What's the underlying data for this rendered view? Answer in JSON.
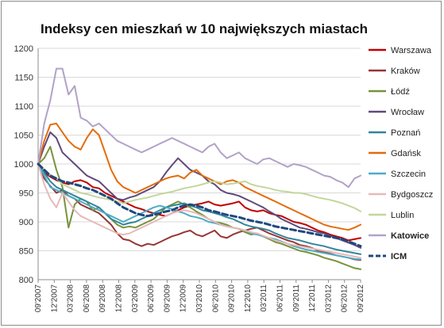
{
  "chart_data": {
    "type": "line",
    "title": "Indeksy cen mieszkań w 10 największych miastach",
    "xlabel": "",
    "ylabel": "",
    "ylim": [
      800,
      1200
    ],
    "yticks": [
      "800",
      "850",
      "900",
      "950",
      "1000",
      "1050",
      "1100",
      "1150",
      "1200"
    ],
    "x_tick_labels": [
      "09'2007",
      "12'2007",
      "03'2008",
      "06'2008",
      "09'2008",
      "12'2008",
      "03'2009",
      "06'2009",
      "09'2009",
      "12'2009",
      "03'2010",
      "06'2010",
      "09'2010",
      "12'2010",
      "03'2011",
      "06'2011",
      "09'2011",
      "12'2011",
      "03'2012",
      "06'2012",
      "09'2012"
    ],
    "grid": "horizontal",
    "legend": "right",
    "series": [
      {
        "name": "Warszawa",
        "color": "#c00000",
        "bold": false,
        "dashed": false,
        "values": [
          1000,
          985,
          978,
          972,
          968,
          965,
          970,
          972,
          968,
          960,
          958,
          950,
          945,
          940,
          935,
          930,
          925,
          922,
          918,
          915,
          912,
          910,
          915,
          920,
          925,
          928,
          930,
          932,
          935,
          930,
          928,
          930,
          932,
          935,
          925,
          920,
          918,
          920,
          915,
          912,
          910,
          905,
          900,
          898,
          895,
          890,
          885,
          882,
          878,
          875,
          872,
          868,
          870,
          872
        ]
      },
      {
        "name": "Kraków",
        "color": "#963634",
        "bold": false,
        "dashed": false,
        "values": [
          1000,
          975,
          962,
          950,
          955,
          945,
          940,
          930,
          925,
          920,
          915,
          905,
          895,
          880,
          870,
          868,
          862,
          858,
          862,
          860,
          865,
          870,
          875,
          878,
          882,
          885,
          878,
          875,
          880,
          885,
          875,
          872,
          878,
          882,
          885,
          888,
          890,
          885,
          880,
          876,
          872,
          868,
          865,
          860,
          858,
          855,
          850,
          848,
          845,
          842,
          840,
          838,
          835,
          834
        ]
      },
      {
        "name": "Łódź",
        "color": "#77933c",
        "bold": false,
        "dashed": false,
        "values": [
          1000,
          1010,
          1030,
          990,
          960,
          890,
          930,
          940,
          935,
          920,
          925,
          915,
          905,
          895,
          890,
          892,
          890,
          895,
          900,
          905,
          915,
          925,
          930,
          935,
          930,
          925,
          918,
          912,
          905,
          900,
          898,
          895,
          890,
          888,
          882,
          878,
          880,
          875,
          870,
          865,
          862,
          858,
          854,
          850,
          848,
          845,
          842,
          838,
          835,
          832,
          828,
          824,
          820,
          818
        ]
      },
      {
        "name": "Wrocław",
        "color": "#604a7b",
        "bold": false,
        "dashed": false,
        "values": [
          1000,
          1030,
          1055,
          1045,
          1020,
          1010,
          1000,
          990,
          980,
          975,
          970,
          960,
          950,
          940,
          938,
          942,
          945,
          950,
          955,
          960,
          970,
          985,
          998,
          1010,
          1000,
          990,
          985,
          980,
          970,
          965,
          955,
          950,
          948,
          945,
          940,
          935,
          930,
          925,
          918,
          912,
          905,
          900,
          895,
          890,
          888,
          885,
          882,
          880,
          876,
          872,
          868,
          864,
          860,
          855
        ]
      },
      {
        "name": "Poznań",
        "color": "#31859c",
        "bold": false,
        "dashed": false,
        "values": [
          1000,
          985,
          970,
          960,
          955,
          950,
          945,
          940,
          935,
          930,
          925,
          915,
          905,
          900,
          895,
          898,
          900,
          905,
          910,
          915,
          920,
          925,
          928,
          930,
          932,
          928,
          925,
          920,
          918,
          915,
          912,
          908,
          905,
          900,
          895,
          892,
          890,
          888,
          885,
          880,
          876,
          872,
          870,
          868,
          865,
          862,
          860,
          858,
          855,
          852,
          850,
          848,
          846,
          844
        ]
      },
      {
        "name": "Gdańsk",
        "color": "#e46c0a",
        "bold": false,
        "dashed": false,
        "values": [
          1000,
          1040,
          1068,
          1070,
          1055,
          1040,
          1030,
          1025,
          1045,
          1060,
          1050,
          1020,
          990,
          970,
          960,
          955,
          950,
          955,
          960,
          965,
          970,
          975,
          978,
          980,
          975,
          985,
          990,
          980,
          975,
          970,
          965,
          970,
          972,
          968,
          960,
          955,
          950,
          945,
          940,
          935,
          930,
          925,
          920,
          915,
          910,
          905,
          900,
          895,
          892,
          890,
          888,
          886,
          890,
          895
        ]
      },
      {
        "name": "Szczecin",
        "color": "#4bacc6",
        "bold": false,
        "dashed": false,
        "values": [
          1000,
          980,
          960,
          955,
          950,
          945,
          940,
          935,
          930,
          925,
          920,
          915,
          910,
          905,
          900,
          905,
          910,
          915,
          920,
          925,
          928,
          925,
          922,
          918,
          915,
          910,
          908,
          905,
          900,
          898,
          895,
          892,
          890,
          888,
          885,
          880,
          878,
          875,
          872,
          870,
          866,
          862,
          858,
          855,
          852,
          850,
          848,
          846,
          844,
          842,
          840,
          838,
          836,
          835
        ]
      },
      {
        "name": "Bydgoszcz",
        "color": "#e6b9b8",
        "bold": false,
        "dashed": false,
        "values": [
          1000,
          965,
          940,
          925,
          950,
          935,
          920,
          910,
          905,
          900,
          895,
          890,
          885,
          880,
          878,
          880,
          885,
          890,
          895,
          900,
          905,
          910,
          915,
          918,
          920,
          918,
          915,
          910,
          905,
          900,
          895,
          892,
          890,
          888,
          885,
          882,
          880,
          876,
          872,
          868,
          865,
          862,
          860,
          858,
          856,
          854,
          852,
          850,
          848,
          846,
          844,
          842,
          840,
          838
        ]
      },
      {
        "name": "Lublin",
        "color": "#c3d69b",
        "bold": false,
        "dashed": false,
        "values": [
          1000,
          990,
          980,
          975,
          965,
          960,
          955,
          950,
          948,
          945,
          942,
          940,
          938,
          935,
          932,
          935,
          938,
          940,
          942,
          945,
          948,
          950,
          952,
          955,
          958,
          960,
          962,
          965,
          968,
          970,
          968,
          965,
          966,
          968,
          970,
          965,
          962,
          960,
          958,
          955,
          953,
          952,
          950,
          950,
          948,
          945,
          942,
          940,
          938,
          935,
          932,
          928,
          924,
          918
        ]
      },
      {
        "name": "Katowice",
        "color": "#b2a2c7",
        "bold": true,
        "dashed": false,
        "values": [
          1000,
          1070,
          1110,
          1165,
          1165,
          1120,
          1135,
          1080,
          1075,
          1065,
          1070,
          1060,
          1050,
          1040,
          1035,
          1030,
          1025,
          1020,
          1025,
          1030,
          1035,
          1040,
          1045,
          1040,
          1035,
          1030,
          1025,
          1020,
          1030,
          1035,
          1020,
          1010,
          1015,
          1020,
          1010,
          1005,
          1000,
          1008,
          1010,
          1005,
          1000,
          995,
          1000,
          998,
          995,
          990,
          985,
          980,
          978,
          972,
          968,
          960,
          975,
          980
        ]
      },
      {
        "name": "ICM",
        "color": "#1f497d",
        "bold": true,
        "dashed": true,
        "values": [
          1000,
          990,
          980,
          975,
          970,
          968,
          965,
          962,
          958,
          955,
          950,
          945,
          940,
          932,
          925,
          920,
          915,
          912,
          910,
          912,
          915,
          918,
          920,
          925,
          928,
          930,
          928,
          925,
          920,
          918,
          915,
          912,
          910,
          908,
          905,
          902,
          900,
          898,
          895,
          892,
          890,
          888,
          886,
          884,
          882,
          880,
          878,
          876,
          874,
          872,
          870,
          866,
          862,
          858
        ]
      }
    ]
  }
}
